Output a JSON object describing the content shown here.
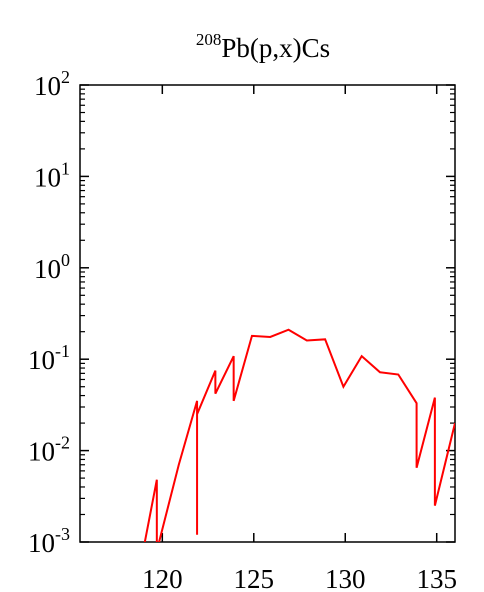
{
  "chart_data": {
    "type": "line",
    "title": {
      "superscript": "208",
      "main": "Pb(p,x)Cs"
    },
    "xlabel": "",
    "ylabel": "",
    "xlim": [
      115.5,
      136
    ],
    "ylim": [
      0.001,
      100
    ],
    "y_scale": "log",
    "grid": false,
    "x_ticks": [
      {
        "value": 120,
        "label": "120"
      },
      {
        "value": 125,
        "label": "125"
      },
      {
        "value": 130,
        "label": "130"
      },
      {
        "value": 135,
        "label": "135"
      }
    ],
    "y_ticks": [
      {
        "value": 0.001,
        "base": "10",
        "exponent": "-3"
      },
      {
        "value": 0.01,
        "base": "10",
        "exponent": "-2"
      },
      {
        "value": 0.1,
        "base": "10",
        "exponent": "-1"
      },
      {
        "value": 1,
        "base": "10",
        "exponent": "0"
      },
      {
        "value": 10,
        "base": "10",
        "exponent": "1"
      },
      {
        "value": 100,
        "base": "10",
        "exponent": "2"
      }
    ],
    "series": [
      {
        "color": "#ff0000",
        "points": [
          [
            119,
            0.0009
          ],
          [
            119.7,
            0.0048
          ],
          [
            119.7,
            0.0008
          ],
          [
            120.9,
            0.007
          ],
          [
            121.9,
            0.035
          ],
          [
            121.9,
            0.0012
          ],
          [
            121.9,
            0.025
          ],
          [
            122.9,
            0.075
          ],
          [
            122.9,
            0.042
          ],
          [
            123.9,
            0.108
          ],
          [
            123.9,
            0.035
          ],
          [
            124.9,
            0.18
          ],
          [
            125.9,
            0.175
          ],
          [
            126.9,
            0.21
          ],
          [
            127.9,
            0.16
          ],
          [
            128.9,
            0.165
          ],
          [
            129.9,
            0.05
          ],
          [
            130.9,
            0.108
          ],
          [
            131.9,
            0.072
          ],
          [
            132.9,
            0.068
          ],
          [
            133.9,
            0.033
          ],
          [
            133.9,
            0.0065
          ],
          [
            134.9,
            0.038
          ],
          [
            134.9,
            0.0025
          ],
          [
            136,
            0.02
          ]
        ]
      }
    ]
  }
}
